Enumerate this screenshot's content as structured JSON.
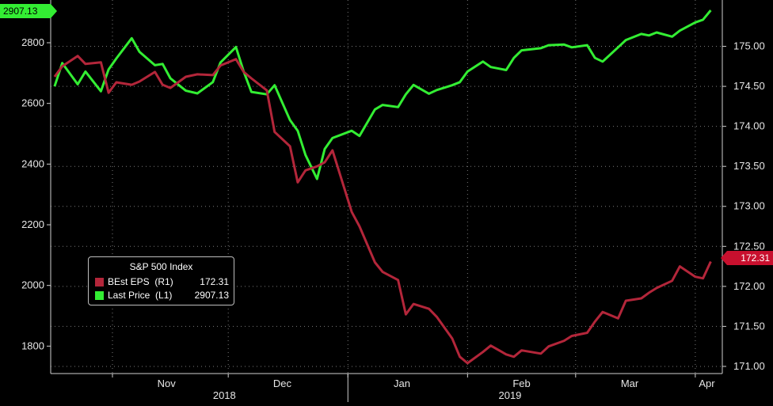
{
  "chart_data": {
    "type": "line",
    "legend": {
      "title": "S&P 500 Index",
      "placement": "bottom-left",
      "entries": [
        {
          "label": "BEst EPS  (R1)",
          "value": "172.31",
          "color": "#b3263a"
        },
        {
          "label": "Last Price  (L1)",
          "value": "2907.13",
          "color": "#33ee33"
        }
      ]
    },
    "left_axis": {
      "ticks": [
        "1800",
        "2000",
        "2200",
        "2400",
        "2600",
        "2800"
      ],
      "ylim": [
        1720,
        2920
      ]
    },
    "right_axis": {
      "ticks": [
        "171.00",
        "171.50",
        "172.00",
        "172.50",
        "173.00",
        "173.50",
        "174.00",
        "174.50",
        "175.00"
      ],
      "ylim": [
        170.95,
        175.5
      ]
    },
    "x_axis": {
      "month_labels": [
        "Nov",
        "Dec",
        "Jan",
        "Feb",
        "Mar",
        "Apr"
      ],
      "year_labels": [
        "2018",
        "2019"
      ]
    },
    "last_value_badges": {
      "left": "2907.13",
      "right": "172.31"
    },
    "grid": true,
    "series": [
      {
        "name": "Last Price",
        "axis": "left",
        "color": "#33ee33",
        "x": [
          "2018-10-17",
          "2018-10-19",
          "2018-10-23",
          "2018-10-25",
          "2018-10-29",
          "2018-10-31",
          "2018-11-02",
          "2018-11-06",
          "2018-11-08",
          "2018-11-12",
          "2018-11-14",
          "2018-11-16",
          "2018-11-20",
          "2018-11-23",
          "2018-11-27",
          "2018-11-29",
          "2018-12-03",
          "2018-12-05",
          "2018-12-07",
          "2018-12-11",
          "2018-12-13",
          "2018-12-17",
          "2018-12-19",
          "2018-12-21",
          "2018-12-24",
          "2018-12-26",
          "2018-12-28",
          "2019-01-02",
          "2019-01-04",
          "2019-01-08",
          "2019-01-10",
          "2019-01-14",
          "2019-01-16",
          "2019-01-18",
          "2019-01-22",
          "2019-01-24",
          "2019-01-28",
          "2019-01-30",
          "2019-02-01",
          "2019-02-05",
          "2019-02-07",
          "2019-02-11",
          "2019-02-13",
          "2019-02-15",
          "2019-02-20",
          "2019-02-22",
          "2019-02-26",
          "2019-02-28",
          "2019-03-04",
          "2019-03-06",
          "2019-03-08",
          "2019-03-12",
          "2019-03-14",
          "2019-03-18",
          "2019-03-20",
          "2019-03-22",
          "2019-03-26",
          "2019-03-28",
          "2019-04-01",
          "2019-04-03",
          "2019-04-05"
        ],
        "values": [
          2656,
          2733,
          2663,
          2705,
          2640,
          2712,
          2748,
          2815,
          2770,
          2726,
          2730,
          2683,
          2642,
          2633,
          2670,
          2735,
          2786,
          2705,
          2638,
          2630,
          2660,
          2545,
          2510,
          2430,
          2351,
          2450,
          2486,
          2510,
          2493,
          2580,
          2595,
          2588,
          2630,
          2661,
          2632,
          2644,
          2660,
          2670,
          2705,
          2738,
          2720,
          2710,
          2750,
          2775,
          2782,
          2792,
          2794,
          2785,
          2792,
          2750,
          2738,
          2785,
          2809,
          2829,
          2824,
          2834,
          2820,
          2840,
          2867,
          2876,
          2907
        ]
      },
      {
        "name": "BEst EPS",
        "axis": "right",
        "color": "#b3263a",
        "x": [
          "2018-10-17",
          "2018-10-19",
          "2018-10-23",
          "2018-10-25",
          "2018-10-29",
          "2018-10-31",
          "2018-11-02",
          "2018-11-06",
          "2018-11-08",
          "2018-11-12",
          "2018-11-14",
          "2018-11-16",
          "2018-11-20",
          "2018-11-23",
          "2018-11-27",
          "2018-11-29",
          "2018-12-03",
          "2018-12-05",
          "2018-12-07",
          "2018-12-11",
          "2018-12-13",
          "2018-12-17",
          "2018-12-19",
          "2018-12-21",
          "2018-12-24",
          "2018-12-26",
          "2018-12-28",
          "2019-01-02",
          "2019-01-04",
          "2019-01-08",
          "2019-01-10",
          "2019-01-14",
          "2019-01-16",
          "2019-01-18",
          "2019-01-22",
          "2019-01-24",
          "2019-01-28",
          "2019-01-30",
          "2019-02-01",
          "2019-02-05",
          "2019-02-07",
          "2019-02-11",
          "2019-02-13",
          "2019-02-15",
          "2019-02-20",
          "2019-02-22",
          "2019-02-26",
          "2019-02-28",
          "2019-03-04",
          "2019-03-06",
          "2019-03-08",
          "2019-03-12",
          "2019-03-14",
          "2019-03-18",
          "2019-03-20",
          "2019-03-22",
          "2019-03-26",
          "2019-03-28",
          "2019-04-01",
          "2019-04-03",
          "2019-04-05"
        ],
        "values": [
          174.62,
          174.75,
          174.88,
          174.78,
          174.8,
          174.42,
          174.55,
          174.52,
          174.56,
          174.68,
          174.52,
          174.48,
          174.62,
          174.65,
          174.64,
          174.76,
          174.84,
          174.68,
          174.6,
          174.45,
          173.93,
          173.75,
          173.3,
          173.45,
          173.5,
          173.55,
          173.7,
          172.93,
          172.75,
          172.3,
          172.18,
          172.08,
          171.65,
          171.78,
          171.72,
          171.62,
          171.35,
          171.12,
          171.04,
          171.18,
          171.26,
          171.15,
          171.12,
          171.2,
          171.16,
          171.25,
          171.32,
          171.38,
          171.42,
          171.56,
          171.68,
          171.6,
          171.82,
          171.85,
          171.92,
          171.98,
          172.07,
          172.25,
          172.12,
          172.1,
          172.31
        ]
      }
    ]
  }
}
